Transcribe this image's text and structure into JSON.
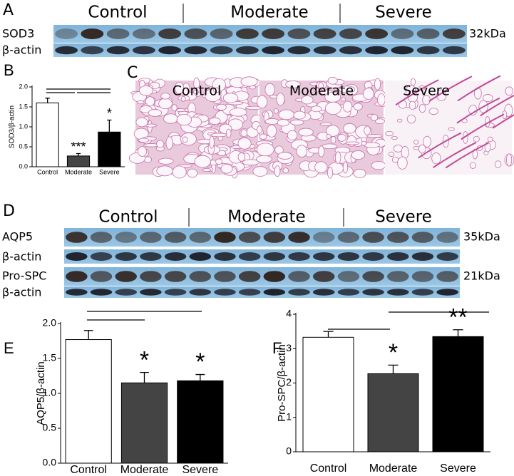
{
  "panel_a": {
    "label": "A",
    "groups": [
      "Control",
      "Moderate",
      "Severe"
    ],
    "rows": [
      "SOD3",
      "β-actin"
    ],
    "sizes": [
      "32kDa"
    ]
  },
  "panel_c": {
    "label": "C",
    "captions": [
      "Control",
      "Moderate",
      "Severe"
    ]
  },
  "panel_d": {
    "label": "D",
    "groups": [
      "Control",
      "Moderate",
      "Severe"
    ],
    "rows": [
      "AQP5",
      "β-actin",
      "Pro-SPC",
      "β-actin"
    ],
    "sizes": [
      "35kDa",
      "21kDa"
    ]
  },
  "chart_data": [
    {
      "type": "bar",
      "panel": "B",
      "y_label": "SOD3/β-actin",
      "categories": [
        "Control",
        "Moderate",
        "Severe"
      ],
      "values": [
        1.6,
        0.27,
        0.87
      ],
      "errors": [
        0.12,
        0.06,
        0.3
      ],
      "colors": [
        "#ffffff",
        "#444444",
        "#000000"
      ],
      "ylim": [
        0,
        2.0
      ],
      "yticks": [
        {
          "value": 0,
          "label": "0.0"
        },
        {
          "value": 0.5,
          "label": "0.5"
        },
        {
          "value": 1,
          "label": "1.0"
        },
        {
          "value": 1.5,
          "label": "1.5"
        },
        {
          "value": 2,
          "label": "2.0"
        }
      ],
      "annotations": [
        {
          "text": "***",
          "category": "Moderate"
        },
        {
          "text": "*",
          "category": "Severe"
        }
      ]
    },
    {
      "type": "bar",
      "panel": "E",
      "y_label": "AQP5/β-actin",
      "categories": [
        "Control",
        "Moderate",
        "Severe"
      ],
      "values": [
        1.77,
        1.15,
        1.18
      ],
      "errors": [
        0.13,
        0.15,
        0.09
      ],
      "colors": [
        "#ffffff",
        "#444444",
        "#000000"
      ],
      "ylim": [
        0,
        2.0
      ],
      "yticks": [
        {
          "value": 0,
          "label": "0.0"
        },
        {
          "value": 0.5,
          "label": "0.5"
        },
        {
          "value": 1,
          "label": "1.0"
        },
        {
          "value": 1.5,
          "label": "1.5"
        },
        {
          "value": 2,
          "label": "2.0"
        }
      ],
      "annotations": [
        {
          "text": "*",
          "category": "Moderate"
        },
        {
          "text": "*",
          "category": "Severe"
        }
      ]
    },
    {
      "type": "bar",
      "panel": "F",
      "y_label": "Pro-SPC/β-actin",
      "categories": [
        "Control",
        "Moderate",
        "Severe"
      ],
      "values": [
        3.33,
        2.27,
        3.35
      ],
      "errors": [
        0.17,
        0.25,
        0.2
      ],
      "colors": [
        "#ffffff",
        "#444444",
        "#000000"
      ],
      "ylim": [
        0,
        4
      ],
      "yticks": [
        0,
        1,
        2,
        3,
        4
      ],
      "annotations": [
        {
          "text": "*",
          "category": "Moderate"
        },
        {
          "text": "**",
          "category": "Severe"
        }
      ]
    }
  ]
}
